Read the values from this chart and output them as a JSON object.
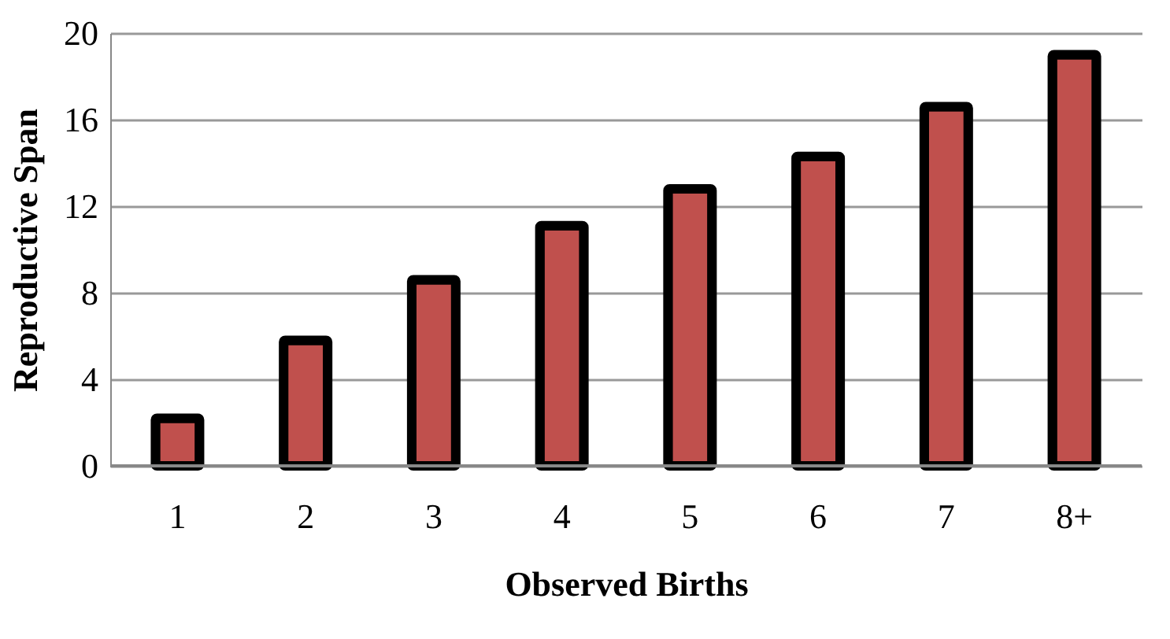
{
  "chart_data": {
    "type": "bar",
    "xlabel": "Observed Births",
    "ylabel": "Reproductive Span",
    "categories": [
      "1",
      "2",
      "3",
      "4",
      "5",
      "6",
      "7",
      "8+"
    ],
    "values": [
      2.2,
      5.8,
      8.6,
      11.1,
      12.8,
      14.3,
      16.6,
      19.0
    ],
    "color": "#c0504d",
    "ylim": [
      0,
      20
    ],
    "yticks": [
      0,
      4,
      8,
      12,
      16,
      20
    ],
    "grid": "y"
  }
}
